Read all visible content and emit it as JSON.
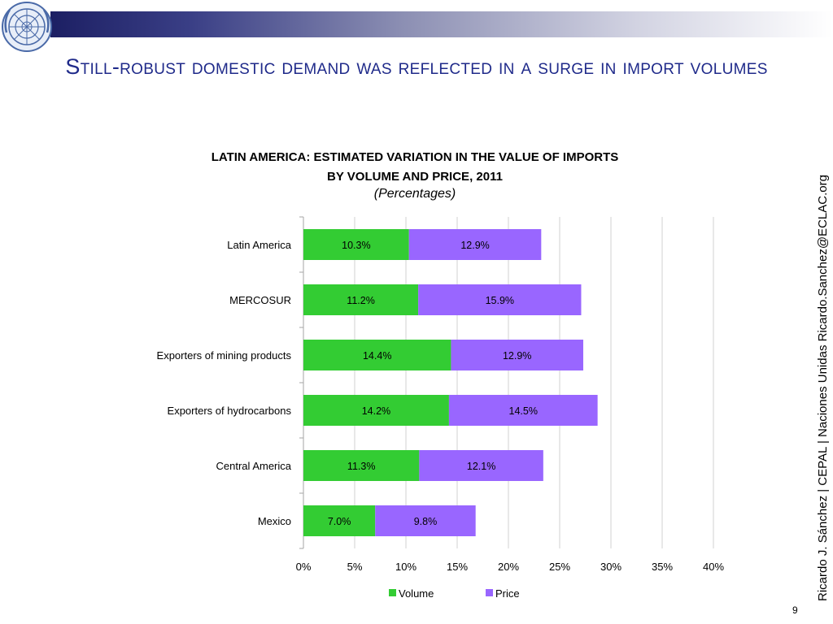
{
  "slide": {
    "title": "Still-robust domestic demand was reflected in a surge in import volumes",
    "side_credit": "Ricardo J. Sánchez | CEPAL | Naciones Unidas   Ricardo.Sanchez@ECLAC.org",
    "page_number": "9",
    "logo_icon": "un-emblem-icon",
    "colors": {
      "title": "#1f2a8a",
      "bar_start": "#1c1f63"
    }
  },
  "chart_data": {
    "type": "bar",
    "orientation": "horizontal",
    "stacked": true,
    "title_line1": "LATIN AMERICA:  ESTIMATED VARIATION IN THE VALUE OF IMPORTS",
    "title_line2": "BY VOLUME AND PRICE, 2011",
    "subtitle": "(Percentages)",
    "categories": [
      "Latin America",
      "MERCOSUR",
      "Exporters of mining products",
      "Exporters of hydrocarbons",
      "Central America",
      "Mexico"
    ],
    "series": [
      {
        "name": "Volume",
        "color": "#33cc33",
        "values": [
          10.3,
          11.2,
          14.4,
          14.2,
          11.3,
          7.0
        ],
        "labels": [
          "10.3%",
          "11.2%",
          "14.4%",
          "14.2%",
          "11.3%",
          "7.0%"
        ]
      },
      {
        "name": "Price",
        "color": "#9966ff",
        "values": [
          12.9,
          15.9,
          12.9,
          14.5,
          12.1,
          9.8
        ],
        "labels": [
          "12.9%",
          "15.9%",
          "12.9%",
          "14.5%",
          "12.1%",
          "9.8%"
        ]
      }
    ],
    "xlim": [
      0,
      40
    ],
    "xticks": [
      "0%",
      "5%",
      "10%",
      "15%",
      "20%",
      "25%",
      "30%",
      "35%",
      "40%"
    ],
    "grid": true,
    "legend_position": "bottom"
  }
}
